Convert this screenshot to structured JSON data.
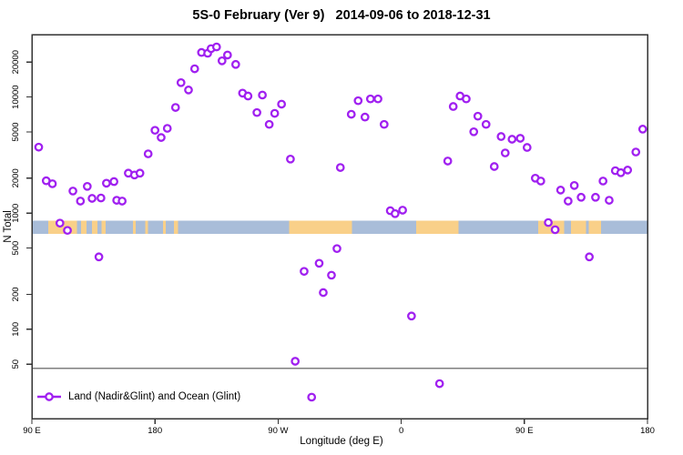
{
  "colors": {
    "point": "#a020f0",
    "point_fill": "#ffffff",
    "ocean": "#a9bdd9",
    "land": "#f9d089",
    "reference_line": "#7f7f7f",
    "axis": "#333333",
    "text": "#000000"
  },
  "legend": {
    "label": "Land (Nadir&Glint) and Ocean (Glint)"
  },
  "chart_data": {
    "type": "scatter",
    "title": "5S-0 February (Ver 9)   2014-09-06 to 2018-12-31",
    "xlabel": "Longitude (deg E)",
    "ylabel": "N Total",
    "y_scale": "log",
    "ylim": [
      17,
      34500
    ],
    "y_ticks": [
      50,
      100,
      200,
      500,
      1000,
      2000,
      5000,
      10000,
      20000
    ],
    "x_span_deg": 450,
    "x_ticks": [
      {
        "pos": 0,
        "label": "90 E"
      },
      {
        "pos": 90,
        "label": "180"
      },
      {
        "pos": 180,
        "label": "90 W"
      },
      {
        "pos": 270,
        "label": "0"
      },
      {
        "pos": 360,
        "label": "90 E"
      },
      {
        "pos": 450,
        "label": "180"
      }
    ],
    "grid": false,
    "legend_position": "bottom-left",
    "marker": "open-circle",
    "reference_line_value": 46,
    "map_strip": {
      "top_value": 860,
      "bottom_value": 660,
      "land_segments_deg": [
        [
          12,
          33
        ],
        [
          36,
          40
        ],
        [
          44,
          48
        ],
        [
          51,
          54
        ],
        [
          74,
          76
        ],
        [
          83,
          85
        ],
        [
          96,
          98
        ],
        [
          104,
          107
        ],
        [
          188,
          234
        ],
        [
          281,
          312
        ],
        [
          370,
          389
        ],
        [
          394,
          405
        ],
        [
          407,
          416
        ]
      ]
    },
    "points": [
      [
        5,
        3700
      ],
      [
        10.5,
        1900
      ],
      [
        15,
        1790
      ],
      [
        20.5,
        820
      ],
      [
        26,
        710
      ],
      [
        30,
        1550
      ],
      [
        35.5,
        1270
      ],
      [
        40.5,
        1700
      ],
      [
        44,
        1340
      ],
      [
        49,
        420
      ],
      [
        50.5,
        1350
      ],
      [
        54.5,
        1810
      ],
      [
        60,
        1870
      ],
      [
        62,
        1290
      ],
      [
        66,
        1270
      ],
      [
        70.5,
        2210
      ],
      [
        75,
        2130
      ],
      [
        79,
        2210
      ],
      [
        85,
        3240
      ],
      [
        90,
        5170
      ],
      [
        94.5,
        4480
      ],
      [
        99,
        5370
      ],
      [
        105,
        8130
      ],
      [
        109,
        13300
      ],
      [
        114.5,
        11500
      ],
      [
        119,
        17500
      ],
      [
        124,
        24200
      ],
      [
        128.5,
        23800
      ],
      [
        131,
        26100
      ],
      [
        135,
        27000
      ],
      [
        139,
        20500
      ],
      [
        143,
        23000
      ],
      [
        149,
        19100
      ],
      [
        154,
        10800
      ],
      [
        158,
        10200
      ],
      [
        164.5,
        7350
      ],
      [
        168.5,
        10400
      ],
      [
        173.5,
        5810
      ],
      [
        177.5,
        7230
      ],
      [
        182.5,
        8680
      ],
      [
        189,
        2920
      ],
      [
        192.5,
        53
      ],
      [
        199,
        315
      ],
      [
        204.5,
        26
      ],
      [
        210,
        370
      ],
      [
        213,
        207
      ],
      [
        219,
        292
      ],
      [
        223,
        495
      ],
      [
        225.5,
        2470
      ],
      [
        233.5,
        7100
      ],
      [
        238.5,
        9290
      ],
      [
        243.5,
        6720
      ],
      [
        247.5,
        9630
      ],
      [
        253,
        9630
      ],
      [
        257.5,
        5810
      ],
      [
        262,
        1050
      ],
      [
        265.5,
        990
      ],
      [
        271,
        1060
      ],
      [
        277.5,
        130
      ],
      [
        298,
        34
      ],
      [
        304,
        2810
      ],
      [
        308,
        8290
      ],
      [
        313,
        10200
      ],
      [
        317.5,
        9630
      ],
      [
        323,
        5020
      ],
      [
        326,
        6840
      ],
      [
        332,
        5810
      ],
      [
        338,
        2520
      ],
      [
        343,
        4570
      ],
      [
        346,
        3300
      ],
      [
        351,
        4330
      ],
      [
        357,
        4410
      ],
      [
        362,
        3680
      ],
      [
        368,
        2000
      ],
      [
        372,
        1890
      ],
      [
        377.5,
        830
      ],
      [
        382.5,
        720
      ],
      [
        386.5,
        1580
      ],
      [
        392,
        1270
      ],
      [
        396.5,
        1730
      ],
      [
        401.5,
        1370
      ],
      [
        407.5,
        420
      ],
      [
        412,
        1370
      ],
      [
        417.5,
        1890
      ],
      [
        422,
        1290
      ],
      [
        426.5,
        2320
      ],
      [
        430.5,
        2230
      ],
      [
        435.5,
        2350
      ],
      [
        441.5,
        3360
      ],
      [
        446.5,
        5290
      ]
    ]
  }
}
